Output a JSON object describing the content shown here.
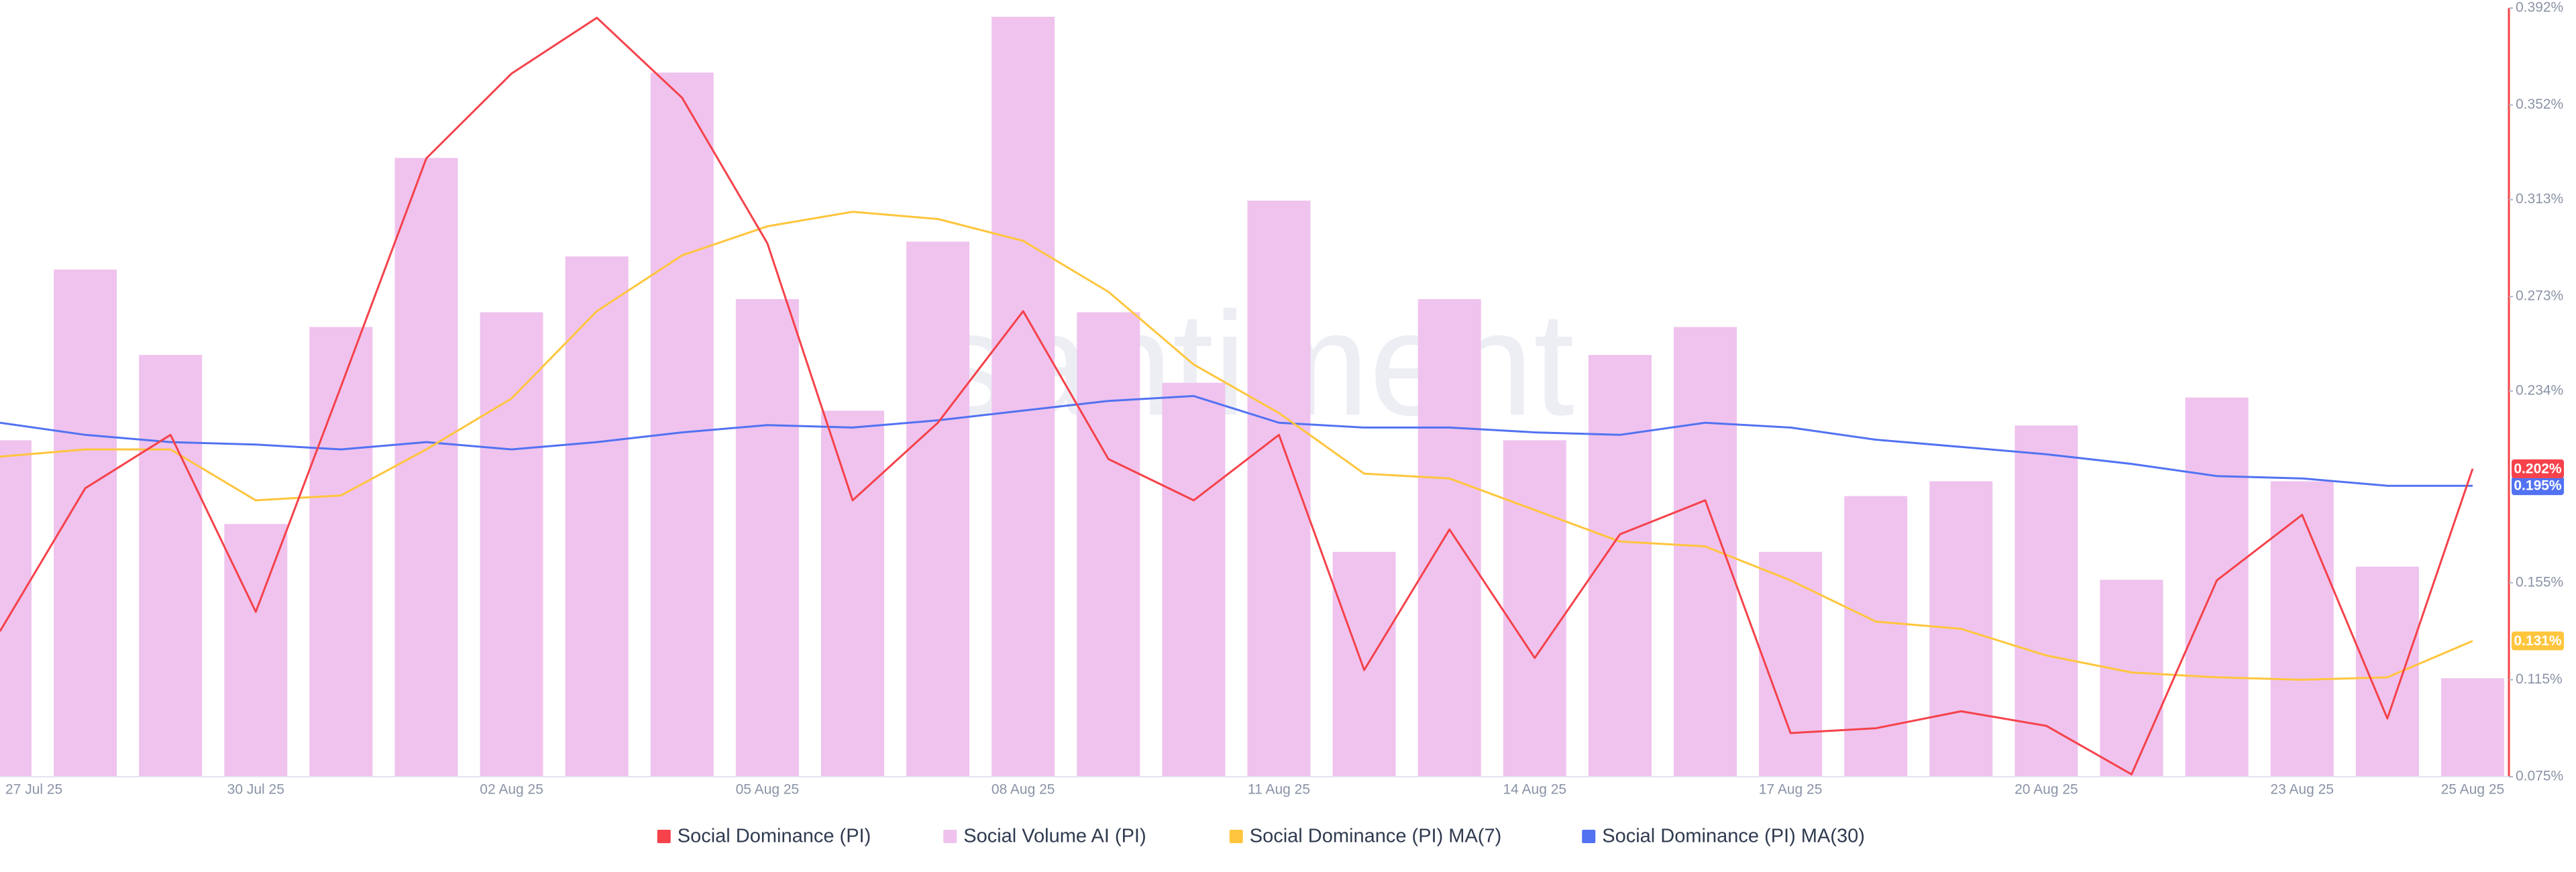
{
  "chart_data": {
    "type": "bar_line",
    "watermark": "santiment",
    "categories": [
      "27 Jul 25",
      null,
      null,
      "30 Jul 25",
      null,
      null,
      "02 Aug 25",
      null,
      null,
      "05 Aug 25",
      null,
      null,
      "08 Aug 25",
      null,
      null,
      "11 Aug 25",
      null,
      null,
      "14 Aug 25",
      null,
      null,
      "17 Aug 25",
      null,
      null,
      "20 Aug 25",
      null,
      null,
      "23 Aug 25",
      null,
      "25 Aug 25"
    ],
    "ylim": [
      0.075,
      0.392
    ],
    "yticks": [
      {
        "value": 0.075,
        "label": "0.075%"
      },
      {
        "value": 0.115,
        "label": "0.115%"
      },
      {
        "value": 0.155,
        "label": "0.155%"
      },
      {
        "value": 0.234,
        "label": "0.234%"
      },
      {
        "value": 0.273,
        "label": "0.273%"
      },
      {
        "value": 0.313,
        "label": "0.313%"
      },
      {
        "value": 0.352,
        "label": "0.352%"
      },
      {
        "value": 0.392,
        "label": "0.392%"
      }
    ],
    "series": [
      {
        "name": "Social Dominance (PI)",
        "type": "line",
        "color": "#f5424b",
        "values": [
          0.135,
          0.194,
          0.216,
          0.143,
          0.236,
          0.33,
          0.365,
          0.388,
          0.355,
          0.295,
          0.189,
          0.221,
          0.267,
          0.206,
          0.189,
          0.216,
          0.119,
          0.177,
          0.124,
          0.175,
          0.189,
          0.093,
          0.095,
          0.102,
          0.096,
          0.076,
          0.156,
          0.183,
          0.099,
          0.202
        ],
        "value_labels": [
          null,
          null,
          null,
          null,
          null,
          null,
          null,
          null,
          null,
          null,
          null,
          null,
          null,
          null,
          null,
          null,
          null,
          null,
          null,
          null,
          null,
          null,
          null,
          null,
          null,
          null,
          null,
          null,
          null,
          "0.202%"
        ]
      },
      {
        "name": "Social Volume AI (PI)",
        "type": "bar",
        "color": "#efc3ee",
        "values": [
          205,
          309,
          257,
          154,
          274,
          377,
          283,
          317,
          429,
          291,
          223,
          326,
          463,
          283,
          240,
          351,
          137,
          291,
          205,
          257,
          274,
          137,
          171,
          180,
          214,
          120,
          231,
          180,
          128,
          60
        ]
      },
      {
        "name": "Social Dominance (PI) MA(7)",
        "type": "line",
        "color": "#ffc53d",
        "values": [
          0.207,
          0.21,
          0.21,
          0.189,
          0.191,
          0.21,
          0.231,
          0.267,
          0.29,
          0.302,
          0.308,
          0.305,
          0.296,
          0.275,
          0.245,
          0.225,
          0.2,
          0.198,
          0.185,
          0.172,
          0.17,
          0.156,
          0.139,
          0.136,
          0.125,
          0.118,
          0.116,
          0.115,
          0.116,
          0.131
        ],
        "value_labels": [
          null,
          null,
          null,
          null,
          null,
          null,
          null,
          null,
          null,
          null,
          null,
          null,
          null,
          null,
          null,
          null,
          null,
          null,
          null,
          null,
          null,
          null,
          null,
          null,
          null,
          null,
          null,
          null,
          null,
          "0.131%"
        ]
      },
      {
        "name": "Social Dominance (PI) MA(30)",
        "type": "line",
        "color": "#5272f2",
        "values": [
          0.221,
          0.216,
          0.213,
          0.212,
          0.21,
          0.213,
          0.21,
          0.213,
          0.217,
          0.22,
          0.219,
          0.222,
          0.226,
          0.23,
          0.232,
          0.221,
          0.219,
          0.219,
          0.217,
          0.216,
          0.221,
          0.219,
          0.214,
          0.211,
          0.208,
          0.204,
          0.199,
          0.198,
          0.195,
          0.195
        ],
        "value_labels": [
          null,
          null,
          null,
          null,
          null,
          null,
          null,
          null,
          null,
          null,
          null,
          null,
          null,
          null,
          null,
          null,
          null,
          null,
          null,
          null,
          null,
          null,
          null,
          null,
          null,
          null,
          null,
          null,
          null,
          "0.195%"
        ]
      }
    ]
  }
}
